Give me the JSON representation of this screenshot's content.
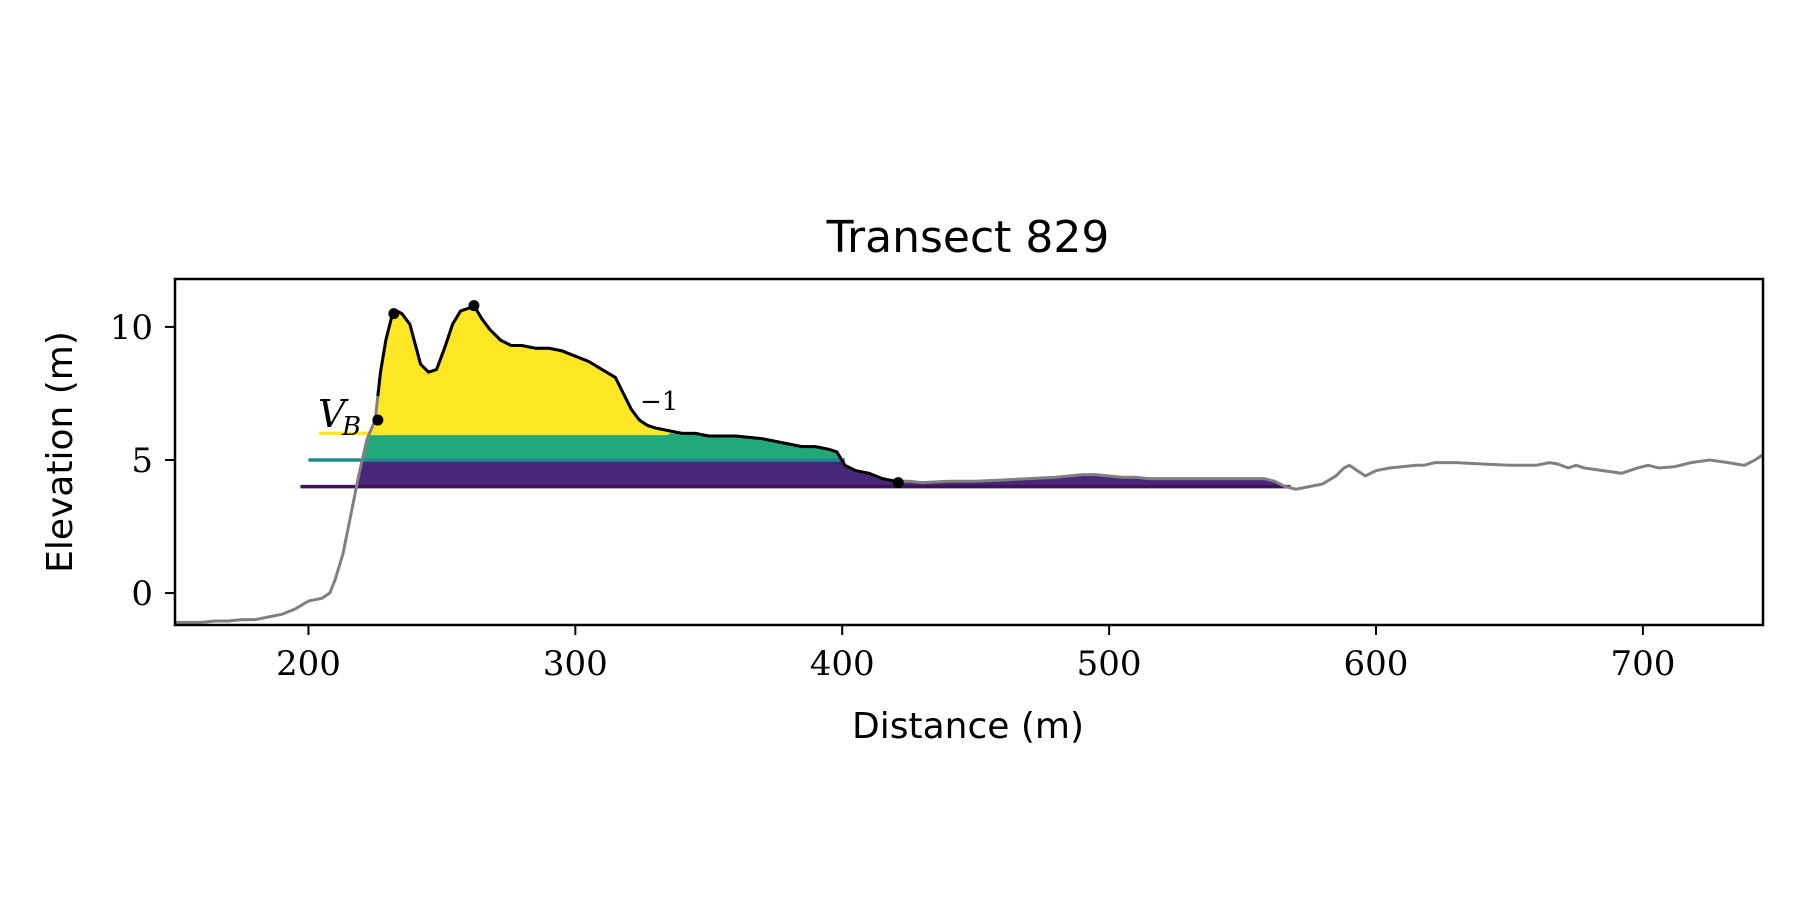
{
  "chart_data": {
    "type": "area",
    "title": "Transect 829",
    "xlabel": "Distance (m)",
    "ylabel": "Elevation (m)",
    "xlim": [
      150,
      745
    ],
    "ylim": [
      -1.2,
      11.8
    ],
    "xticks": [
      200,
      300,
      400,
      500,
      600,
      700
    ],
    "yticks": [
      0,
      5,
      10
    ],
    "grid": false,
    "legend": "none",
    "colors": {
      "profile": "#808080",
      "dune_outline": "#000000",
      "level_high": "#fde725",
      "level_mid": "#21a97c",
      "level_low": "#472878",
      "level_base": "#440f5c"
    },
    "profile": {
      "x": [
        150,
        155,
        160,
        165,
        170,
        175,
        180,
        185,
        190,
        195,
        200,
        205,
        208,
        210,
        213,
        216,
        219,
        222,
        225,
        227,
        229,
        231,
        233,
        235,
        238,
        242,
        245,
        248,
        251,
        254,
        257,
        260,
        262,
        265,
        268,
        272,
        276,
        280,
        285,
        290,
        295,
        300,
        305,
        310,
        315,
        318,
        321,
        324,
        327,
        330,
        335,
        340,
        345,
        350,
        360,
        370,
        375,
        380,
        385,
        390,
        395,
        398,
        401,
        405,
        410,
        415,
        420,
        425,
        430,
        440,
        450,
        460,
        470,
        480,
        485,
        490,
        495,
        500,
        505,
        510,
        515,
        520,
        530,
        540,
        550,
        558,
        562,
        566,
        570,
        575,
        580,
        585,
        588,
        590,
        593,
        596,
        600,
        605,
        610,
        615,
        618,
        622,
        630,
        640,
        650,
        660,
        665,
        668,
        672,
        675,
        678,
        685,
        692,
        698,
        702,
        706,
        712,
        718,
        725,
        732,
        738,
        742,
        745
      ],
      "y": [
        -1.1,
        -1.1,
        -1.1,
        -1.05,
        -1.05,
        -1.0,
        -1.0,
        -0.9,
        -0.8,
        -0.6,
        -0.3,
        -0.2,
        0.0,
        0.5,
        1.5,
        3.0,
        4.5,
        5.8,
        6.5,
        8.3,
        9.5,
        10.3,
        10.6,
        10.5,
        10.1,
        8.6,
        8.3,
        8.4,
        9.2,
        10.1,
        10.6,
        10.7,
        10.8,
        10.3,
        9.9,
        9.5,
        9.3,
        9.3,
        9.2,
        9.2,
        9.1,
        8.9,
        8.7,
        8.4,
        8.1,
        7.5,
        6.9,
        6.5,
        6.3,
        6.2,
        6.1,
        6.0,
        6.0,
        5.9,
        5.9,
        5.8,
        5.7,
        5.6,
        5.5,
        5.5,
        5.4,
        5.3,
        4.8,
        4.6,
        4.5,
        4.3,
        4.2,
        4.2,
        4.15,
        4.2,
        4.2,
        4.25,
        4.3,
        4.35,
        4.4,
        4.45,
        4.45,
        4.4,
        4.35,
        4.35,
        4.3,
        4.3,
        4.3,
        4.3,
        4.3,
        4.3,
        4.2,
        4.0,
        3.9,
        4.0,
        4.1,
        4.4,
        4.7,
        4.8,
        4.6,
        4.4,
        4.6,
        4.7,
        4.75,
        4.8,
        4.8,
        4.9,
        4.9,
        4.85,
        4.8,
        4.8,
        4.9,
        4.85,
        4.7,
        4.8,
        4.7,
        4.6,
        4.5,
        4.7,
        4.8,
        4.7,
        4.75,
        4.9,
        5.0,
        4.9,
        4.8,
        5.0,
        5.2
      ]
    },
    "dune_outline": {
      "x_range": [
        226,
        421
      ]
    },
    "levels": [
      {
        "elevation": 6.0,
        "x_start": 204,
        "x_end": 335
      },
      {
        "elevation": 5.0,
        "x_start": 200,
        "x_end": 401
      },
      {
        "elevation": 4.0,
        "x_start": 197,
        "x_end": 568
      }
    ],
    "points": [
      {
        "x": 226,
        "y": 6.5
      },
      {
        "x": 232,
        "y": 10.5
      },
      {
        "x": 262,
        "y": 10.8
      },
      {
        "x": 421,
        "y": 4.15
      }
    ],
    "annotations": {
      "vb_main": "V",
      "vb_sub": "B",
      "minus_one": "−1"
    }
  }
}
